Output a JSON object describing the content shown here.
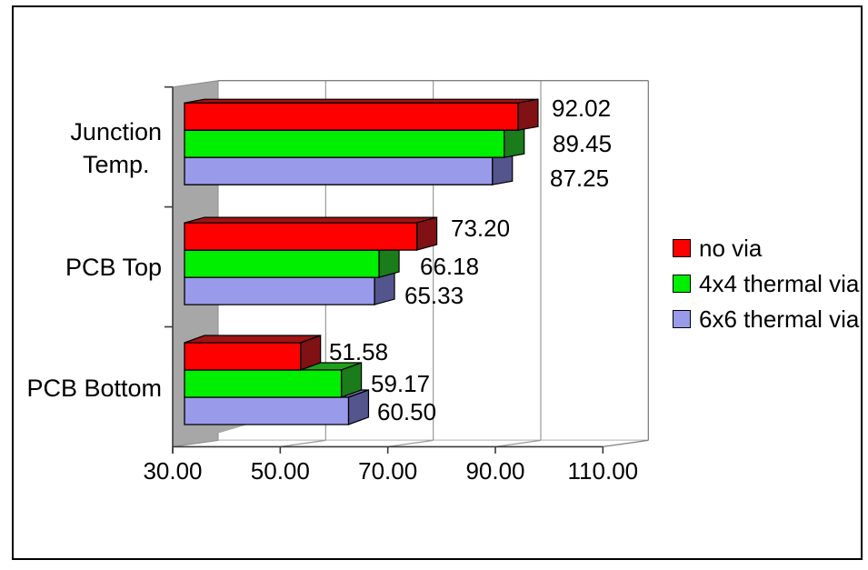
{
  "chart_data": {
    "type": "bar",
    "orientation": "horizontal-3d",
    "title": "",
    "xlabel": "",
    "ylabel": "",
    "categories": [
      "Junction Temp.",
      "PCB Top",
      "PCB Bottom"
    ],
    "category_lines": [
      [
        "Junction",
        "Temp."
      ],
      [
        "PCB Top"
      ],
      [
        "PCB Bottom"
      ]
    ],
    "series": [
      {
        "name": "no via",
        "color": "#FF0000",
        "color_top": "#A01414",
        "color_side": "#801114",
        "values": [
          92.02,
          73.2,
          51.58
        ]
      },
      {
        "name": "4x4 thermal via",
        "color": "#00EE00",
        "color_top": "#1FA01C",
        "color_side": "#1A7C1A",
        "values": [
          89.45,
          66.18,
          59.17
        ]
      },
      {
        "name": "6x6 thermal via",
        "color": "#9A9AEB",
        "color_top": "#7070B2",
        "color_side": "#55558E",
        "values": [
          87.25,
          65.33,
          60.5
        ]
      }
    ],
    "data_labels": [
      [
        "92.02",
        "89.45",
        "87.25"
      ],
      [
        "73.20",
        "66.18",
        "65.33"
      ],
      [
        "51.58",
        "59.17",
        "60.50"
      ]
    ],
    "x_ticks": [
      "30.00",
      "50.00",
      "70.00",
      "90.00",
      "110.00"
    ],
    "x_tick_values": [
      30,
      50,
      70,
      90,
      110
    ],
    "xlim": [
      30,
      110
    ],
    "grid": true,
    "legend_position": "right"
  },
  "legend": {
    "items": [
      {
        "label": "no via",
        "color": "#FF0000"
      },
      {
        "label": "4x4 thermal via",
        "color": "#00EE00"
      },
      {
        "label": "6x6 thermal via",
        "color": "#9A9AEB"
      }
    ]
  },
  "colors": {
    "wall_gray": "#A7A7A7",
    "gridline": "#9A9A9A",
    "plot_border": "#808080",
    "axis_line": "#3A3A3A",
    "frame_border": "#000000",
    "background": "#FFFFFF",
    "text": "#000000"
  }
}
